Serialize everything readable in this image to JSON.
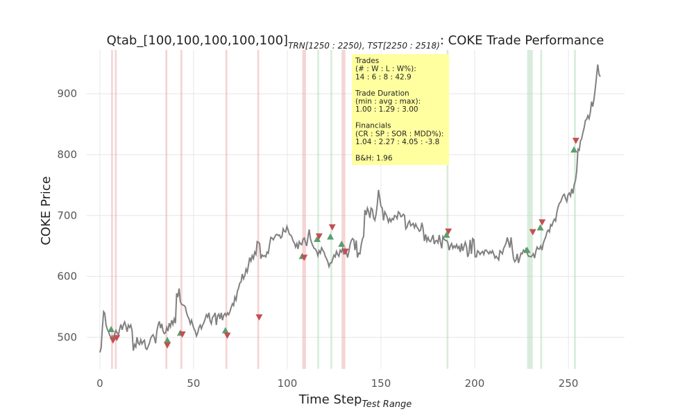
{
  "chart_data": {
    "type": "line",
    "title": {
      "prefix": "Qtab_[100,100,100,100,100]",
      "sub1": "TRN[1250 : 2250), TST[2250 : 2518)",
      "suffix": ": COKE Trade Performance"
    },
    "xlabel": {
      "main": "Time Step",
      "sub": "Test Range"
    },
    "ylabel": "COKE Price",
    "xlim": [
      -7,
      280
    ],
    "ylim": [
      448,
      972
    ],
    "xticks": [
      0,
      50,
      100,
      150,
      200,
      250
    ],
    "yticks": [
      500,
      600,
      700,
      800,
      900
    ],
    "grid": true,
    "colors": {
      "price": "#808080",
      "loss_span": "#e8a0a0",
      "win_span": "#a8d8b0",
      "buy": "#5a9e6f",
      "sell": "#c44e52",
      "box_fill": "#ffffa0",
      "grid": "#e6e6e6"
    },
    "series": [
      {
        "values": [
          475,
          482,
          515,
          542,
          539,
          520,
          513,
          509,
          503,
          500,
          502,
          498,
          506,
          511,
          507,
          504,
          514,
          521,
          512,
          520,
          525,
          518,
          509,
          520,
          516,
          520,
          511,
          478,
          488,
          484,
          500,
          490,
          488,
          496,
          489,
          493,
          495,
          482,
          480,
          485,
          490,
          498,
          502,
          504,
          499,
          490,
          510,
          520,
          526,
          515,
          522,
          510,
          506,
          507,
          516,
          510,
          523,
          517,
          528,
          521,
          530,
          523,
          572,
          566,
          580,
          558,
          554,
          553,
          552,
          550,
          540,
          534,
          530,
          522,
          528,
          520,
          514,
          510,
          502,
          507,
          516,
          520,
          514,
          520,
          524,
          530,
          537,
          533,
          540,
          527,
          522,
          533,
          535,
          540,
          520,
          535,
          538,
          530,
          540,
          528,
          536,
          539,
          535,
          540,
          537,
          542,
          549,
          555,
          552,
          566,
          561,
          575,
          581,
          589,
          591,
          604,
          596,
          601,
          612,
          607,
          619,
          631,
          625,
          634,
          629,
          640,
          636,
          657,
          656,
          654,
          629,
          635,
          633,
          634,
          632,
          640,
          638,
          652,
          664,
          663,
          660,
          664,
          668,
          669,
          667,
          668,
          663,
          665,
          678,
          674,
          673,
          682,
          676,
          669,
          668,
          665,
          658,
          655,
          648,
          654,
          645,
          657,
          653,
          652,
          661,
          663,
          656,
          650,
          664,
          677,
          662,
          655,
          650,
          646,
          645,
          641,
          634,
          642,
          638,
          647,
          643,
          640,
          633,
          629,
          624,
          616,
          622,
          622,
          628,
          635,
          632,
          641,
          636,
          633,
          643,
          640,
          646,
          636,
          645,
          640,
          631,
          640,
          652,
          659,
          662,
          660,
          643,
          659,
          631,
          638,
          637,
          652,
          661,
          666,
          709,
          701,
          712,
          706,
          696,
          712,
          710,
          696,
          692,
          702,
          719,
          742,
          728,
          715,
          712,
          692,
          706,
          702,
          697,
          689,
          695,
          690,
          695,
          693,
          700,
          699,
          695,
          706,
          704,
          698,
          699,
          702,
          700,
          678,
          681,
          688,
          691,
          683,
          685,
          687,
          680,
          686,
          681,
          678,
          674,
          676,
          688,
          678,
          658,
          669,
          658,
          664,
          658,
          657,
          662,
          668,
          653,
          658,
          659,
          655,
          668,
          656,
          646,
          665,
          661,
          659,
          659,
          655,
          643,
          650,
          654,
          646,
          650,
          647,
          652,
          646,
          649,
          640,
          654,
          642,
          649,
          656,
          649,
          632,
          638,
          660,
          637,
          662,
          660,
          632,
          632,
          642,
          640,
          636,
          639,
          641,
          636,
          643,
          643,
          640,
          637,
          641,
          638,
          642,
          637,
          630,
          633,
          630,
          627,
          642,
          640,
          637,
          646,
          650,
          655,
          664,
          656,
          647,
          664,
          645,
          629,
          624,
          627,
          637,
          622,
          630,
          638,
          637,
          643,
          640,
          645,
          638,
          633,
          633,
          632,
          634,
          637,
          630,
          641,
          648,
          645,
          645,
          650,
          643,
          654,
          660,
          665,
          673,
          676,
          673,
          685,
          683,
          690,
          694,
          691,
          705,
          714,
          720,
          722,
          728,
          733,
          735,
          728,
          723,
          734,
          737,
          732,
          744,
          736,
          751,
          757,
          773,
          809,
          807,
          822,
          826,
          836,
          844,
          856,
          858,
          864,
          859,
          869,
          887,
          879,
          892,
          909,
          928,
          948,
          932,
          928
        ]
      }
    ],
    "buy_points": [
      [
        6,
        513
      ],
      [
        36,
        495
      ],
      [
        43,
        507
      ],
      [
        67,
        511
      ],
      [
        108,
        633
      ],
      [
        116,
        661
      ],
      [
        123,
        665
      ],
      [
        129,
        653
      ],
      [
        185,
        668
      ],
      [
        228,
        643
      ],
      [
        235,
        680
      ],
      [
        253,
        808
      ]
    ],
    "sell_points": [
      [
        7,
        495
      ],
      [
        9,
        499
      ],
      [
        36,
        487
      ],
      [
        44,
        505
      ],
      [
        68,
        503
      ],
      [
        85,
        533
      ],
      [
        109,
        631
      ],
      [
        117,
        666
      ],
      [
        124,
        681
      ],
      [
        131,
        641
      ],
      [
        186,
        674
      ],
      [
        231,
        673
      ],
      [
        236,
        689
      ],
      [
        254,
        823
      ]
    ],
    "loss_spans": [
      [
        6,
        7
      ],
      [
        8,
        9
      ],
      [
        35,
        36
      ],
      [
        43,
        44
      ],
      [
        67,
        68
      ],
      [
        84,
        85
      ],
      [
        108,
        110
      ],
      [
        129,
        131
      ]
    ],
    "win_spans": [
      [
        116,
        117
      ],
      [
        123,
        124
      ],
      [
        185,
        186
      ],
      [
        228,
        231
      ],
      [
        235,
        236
      ],
      [
        253,
        254
      ]
    ],
    "stats_box": [
      "Trades",
      "(# : W : L : W%):",
      "14 : 6 : 8 : 42.9",
      "",
      "Trade Duration",
      "(min : avg : max):",
      "1.00 : 1.29 : 3.00",
      "",
      "Financials",
      "(CR : SP : SOR : MDD%):",
      "1.04 : 2.27 : 4.05 : -3.8",
      "",
      "B&H: 1.96"
    ]
  }
}
